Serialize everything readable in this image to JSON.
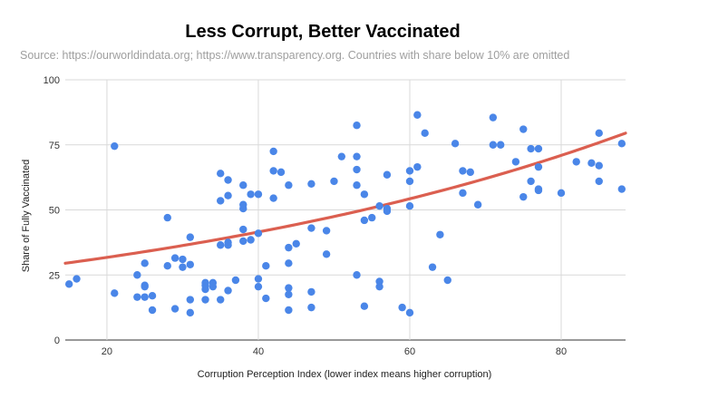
{
  "chart_data": {
    "type": "scatter",
    "title": "Less Corrupt, Better Vaccinated",
    "subtitle": "Source: https://ourworldindata.org; https://www.transparency.org. Countries with share below 10% are omitted",
    "xlabel": "Corruption Perception Index (lower index means higher corruption)",
    "ylabel": "Share of Fully Vaccinated",
    "xlim": [
      14.5,
      88.5
    ],
    "ylim": [
      0,
      100
    ],
    "x_ticks": [
      20,
      40,
      60,
      80
    ],
    "y_ticks": [
      0,
      25,
      50,
      75,
      100
    ],
    "grid": true,
    "point_color": "#4a86e8",
    "trend_color": "#db5f50",
    "points": [
      [
        15,
        21.5
      ],
      [
        16,
        23.5
      ],
      [
        21,
        74.5
      ],
      [
        21,
        18
      ],
      [
        24,
        25
      ],
      [
        24,
        16.5
      ],
      [
        25,
        29.5
      ],
      [
        25,
        21
      ],
      [
        25,
        20.5
      ],
      [
        25,
        16.5
      ],
      [
        26,
        17
      ],
      [
        26,
        11.5
      ],
      [
        28,
        47
      ],
      [
        28,
        28.5
      ],
      [
        29,
        31.5
      ],
      [
        29,
        12
      ],
      [
        30,
        31
      ],
      [
        30,
        28
      ],
      [
        31,
        39.5
      ],
      [
        31,
        29
      ],
      [
        31,
        15.5
      ],
      [
        31,
        10.5
      ],
      [
        33,
        22
      ],
      [
        33,
        21
      ],
      [
        33,
        19.5
      ],
      [
        33,
        15.5
      ],
      [
        34,
        22
      ],
      [
        34,
        20.5
      ],
      [
        35,
        64
      ],
      [
        35,
        53.5
      ],
      [
        35,
        36.5
      ],
      [
        35,
        15.5
      ],
      [
        36,
        61.5
      ],
      [
        36,
        55.5
      ],
      [
        36,
        37.5
      ],
      [
        36,
        36.5
      ],
      [
        36,
        19
      ],
      [
        37,
        23
      ],
      [
        38,
        59.5
      ],
      [
        38,
        52
      ],
      [
        38,
        50.5
      ],
      [
        38,
        42.5
      ],
      [
        38,
        38
      ],
      [
        39,
        56
      ],
      [
        39,
        38.5
      ],
      [
        40,
        56
      ],
      [
        40,
        41
      ],
      [
        40,
        23.5
      ],
      [
        40,
        20.5
      ],
      [
        41,
        28.5
      ],
      [
        41,
        16
      ],
      [
        42,
        72.5
      ],
      [
        42,
        65
      ],
      [
        42,
        54.5
      ],
      [
        43,
        64.5
      ],
      [
        44,
        59.5
      ],
      [
        44,
        35.5
      ],
      [
        44,
        29.5
      ],
      [
        44,
        20
      ],
      [
        44,
        17.5
      ],
      [
        44,
        11.5
      ],
      [
        45,
        37
      ],
      [
        47,
        60
      ],
      [
        47,
        43
      ],
      [
        47,
        18.5
      ],
      [
        47,
        12.5
      ],
      [
        49,
        42
      ],
      [
        49,
        33
      ],
      [
        50,
        61
      ],
      [
        51,
        70.5
      ],
      [
        53,
        82.5
      ],
      [
        53,
        70.5
      ],
      [
        53,
        65.5
      ],
      [
        53,
        59.5
      ],
      [
        53,
        25
      ],
      [
        54,
        56
      ],
      [
        54,
        46
      ],
      [
        54,
        13
      ],
      [
        55,
        47
      ],
      [
        56,
        51.5
      ],
      [
        56,
        22.5
      ],
      [
        56,
        20.5
      ],
      [
        57,
        63.5
      ],
      [
        57,
        50.5
      ],
      [
        57,
        49.5
      ],
      [
        59,
        12.5
      ],
      [
        60,
        65
      ],
      [
        60,
        61
      ],
      [
        60,
        51.5
      ],
      [
        60,
        10.5
      ],
      [
        61,
        86.5
      ],
      [
        61,
        66.5
      ],
      [
        62,
        79.5
      ],
      [
        63,
        28
      ],
      [
        64,
        40.5
      ],
      [
        65,
        23
      ],
      [
        66,
        75.5
      ],
      [
        67,
        65
      ],
      [
        67,
        56.5
      ],
      [
        68,
        64.5
      ],
      [
        69,
        52
      ],
      [
        71,
        85.5
      ],
      [
        71,
        75
      ],
      [
        72,
        75
      ],
      [
        74,
        68.5
      ],
      [
        75,
        81
      ],
      [
        75,
        55
      ],
      [
        76,
        73.5
      ],
      [
        76,
        61
      ],
      [
        77,
        73.5
      ],
      [
        77,
        66.5
      ],
      [
        77,
        58
      ],
      [
        77,
        57.5
      ],
      [
        80,
        56.5
      ],
      [
        82,
        68.5
      ],
      [
        84,
        68
      ],
      [
        85,
        79.5
      ],
      [
        85,
        67
      ],
      [
        85,
        61
      ],
      [
        88,
        75.5
      ],
      [
        88,
        58
      ]
    ],
    "trendline": {
      "type": "exponential",
      "from": [
        14.5,
        29.5
      ],
      "to": [
        88.5,
        79.5
      ]
    }
  }
}
